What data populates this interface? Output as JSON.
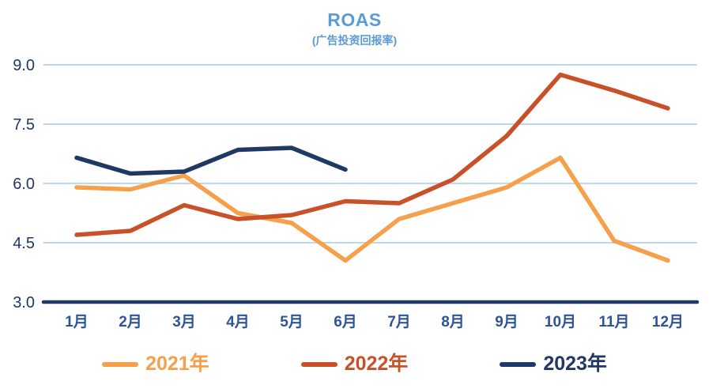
{
  "chart_data": {
    "type": "line",
    "title": "ROAS",
    "subtitle": "(广告投资回报率)",
    "categories": [
      "1月",
      "2月",
      "3月",
      "4月",
      "5月",
      "6月",
      "7月",
      "8月",
      "9月",
      "10月",
      "11月",
      "12月"
    ],
    "series": [
      {
        "name": "2021年",
        "color": "#F5A04A",
        "values": [
          5.9,
          5.85,
          6.2,
          5.25,
          5.0,
          4.05,
          5.1,
          5.5,
          5.9,
          6.65,
          4.55,
          4.05
        ]
      },
      {
        "name": "2022年",
        "color": "#C9512A",
        "values": [
          4.7,
          4.8,
          5.45,
          5.1,
          5.2,
          5.55,
          5.5,
          6.1,
          7.2,
          8.75,
          8.35,
          7.9
        ]
      },
      {
        "name": "2023年",
        "color": "#1F3864",
        "values": [
          6.65,
          6.25,
          6.3,
          6.85,
          6.9,
          6.35,
          null,
          null,
          null,
          null,
          null,
          null
        ]
      }
    ],
    "y_ticks": [
      3.0,
      4.5,
      6.0,
      7.5,
      9.0
    ],
    "ylim": [
      3.0,
      9.0
    ],
    "grid": true,
    "legend_position": "bottom",
    "colors": {
      "title": "#5B9BD5",
      "subtitle": "#5B9BD5",
      "grid": "#BDD7EE",
      "axis": "#1F3864",
      "y_label": "#1F3864",
      "x_label": "#2F5496"
    }
  }
}
